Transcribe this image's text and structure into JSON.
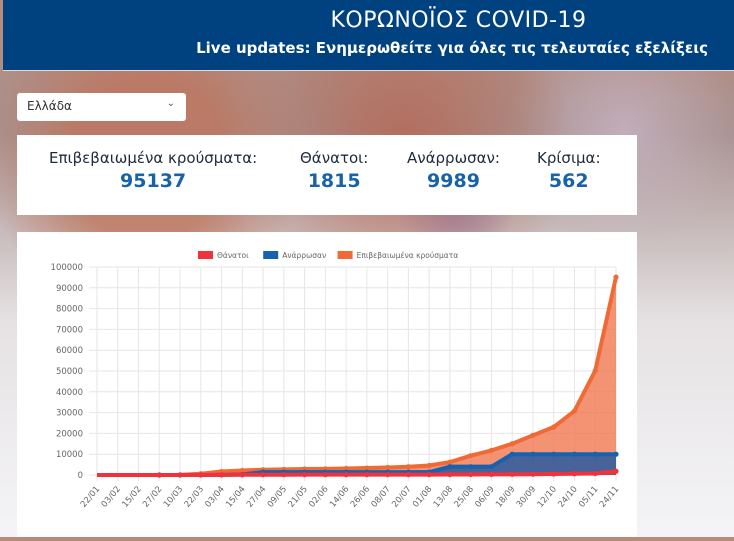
{
  "header": {
    "title": "ΚΟΡΩΝΟΪΟΣ COVID-19",
    "subtitle": "Live updates: Ενημερωθείτε για όλες τις τελευταίες εξελίξεις"
  },
  "country_select": {
    "value": "Ελλάδα",
    "icon": "chevron-down-icon"
  },
  "stats": [
    {
      "label": "Επιβεβαιωμένα κρούσματα:",
      "value": "95137"
    },
    {
      "label": "Θάνατοι:",
      "value": "1815"
    },
    {
      "label": "Ανάρρωσαν:",
      "value": "9989"
    },
    {
      "label": "Κρίσιμα:",
      "value": "562"
    }
  ],
  "chart_data": {
    "type": "area",
    "title": "",
    "xlabel": "",
    "ylabel": "",
    "ylim": [
      0,
      100000
    ],
    "yticks": [
      0,
      10000,
      20000,
      30000,
      40000,
      50000,
      60000,
      70000,
      80000,
      90000,
      100000
    ],
    "grid": true,
    "legend_position": "top",
    "categories": [
      "22/01",
      "03/02",
      "15/02",
      "27/02",
      "10/03",
      "22/03",
      "03/04",
      "15/04",
      "27/04",
      "09/05",
      "21/05",
      "02/06",
      "14/06",
      "26/06",
      "08/07",
      "20/07",
      "01/08",
      "13/08",
      "25/08",
      "06/09",
      "18/09",
      "30/09",
      "12/10",
      "24/10",
      "05/11",
      "24/11"
    ],
    "series": [
      {
        "name": "Θάνατοι",
        "color": "#f0323c",
        "values": [
          0,
          0,
          0,
          0,
          0,
          15,
          68,
          102,
          136,
          148,
          169,
          179,
          183,
          191,
          193,
          195,
          206,
          228,
          254,
          279,
          330,
          388,
          470,
          597,
          721,
          1815
        ]
      },
      {
        "name": "Ανάρρωσαν",
        "color": "#1762b0",
        "values": [
          0,
          0,
          0,
          0,
          0,
          19,
          78,
          269,
          1374,
          1374,
          1374,
          1374,
          1374,
          1374,
          1374,
          1374,
          1374,
          4000,
          4000,
          4000,
          9989,
          9989,
          9989,
          9989,
          9989,
          9989
        ]
      },
      {
        "name": "Επιβεβαιωμένα κρούσματα",
        "color": "#f06a35",
        "values": [
          0,
          0,
          0,
          3,
          89,
          624,
          1673,
          2192,
          2534,
          2710,
          2876,
          2952,
          3121,
          3343,
          3622,
          3983,
          4587,
          6177,
          9280,
          11832,
          15044,
          19079,
          23062,
          30782,
          50160,
          95137
        ]
      }
    ]
  }
}
